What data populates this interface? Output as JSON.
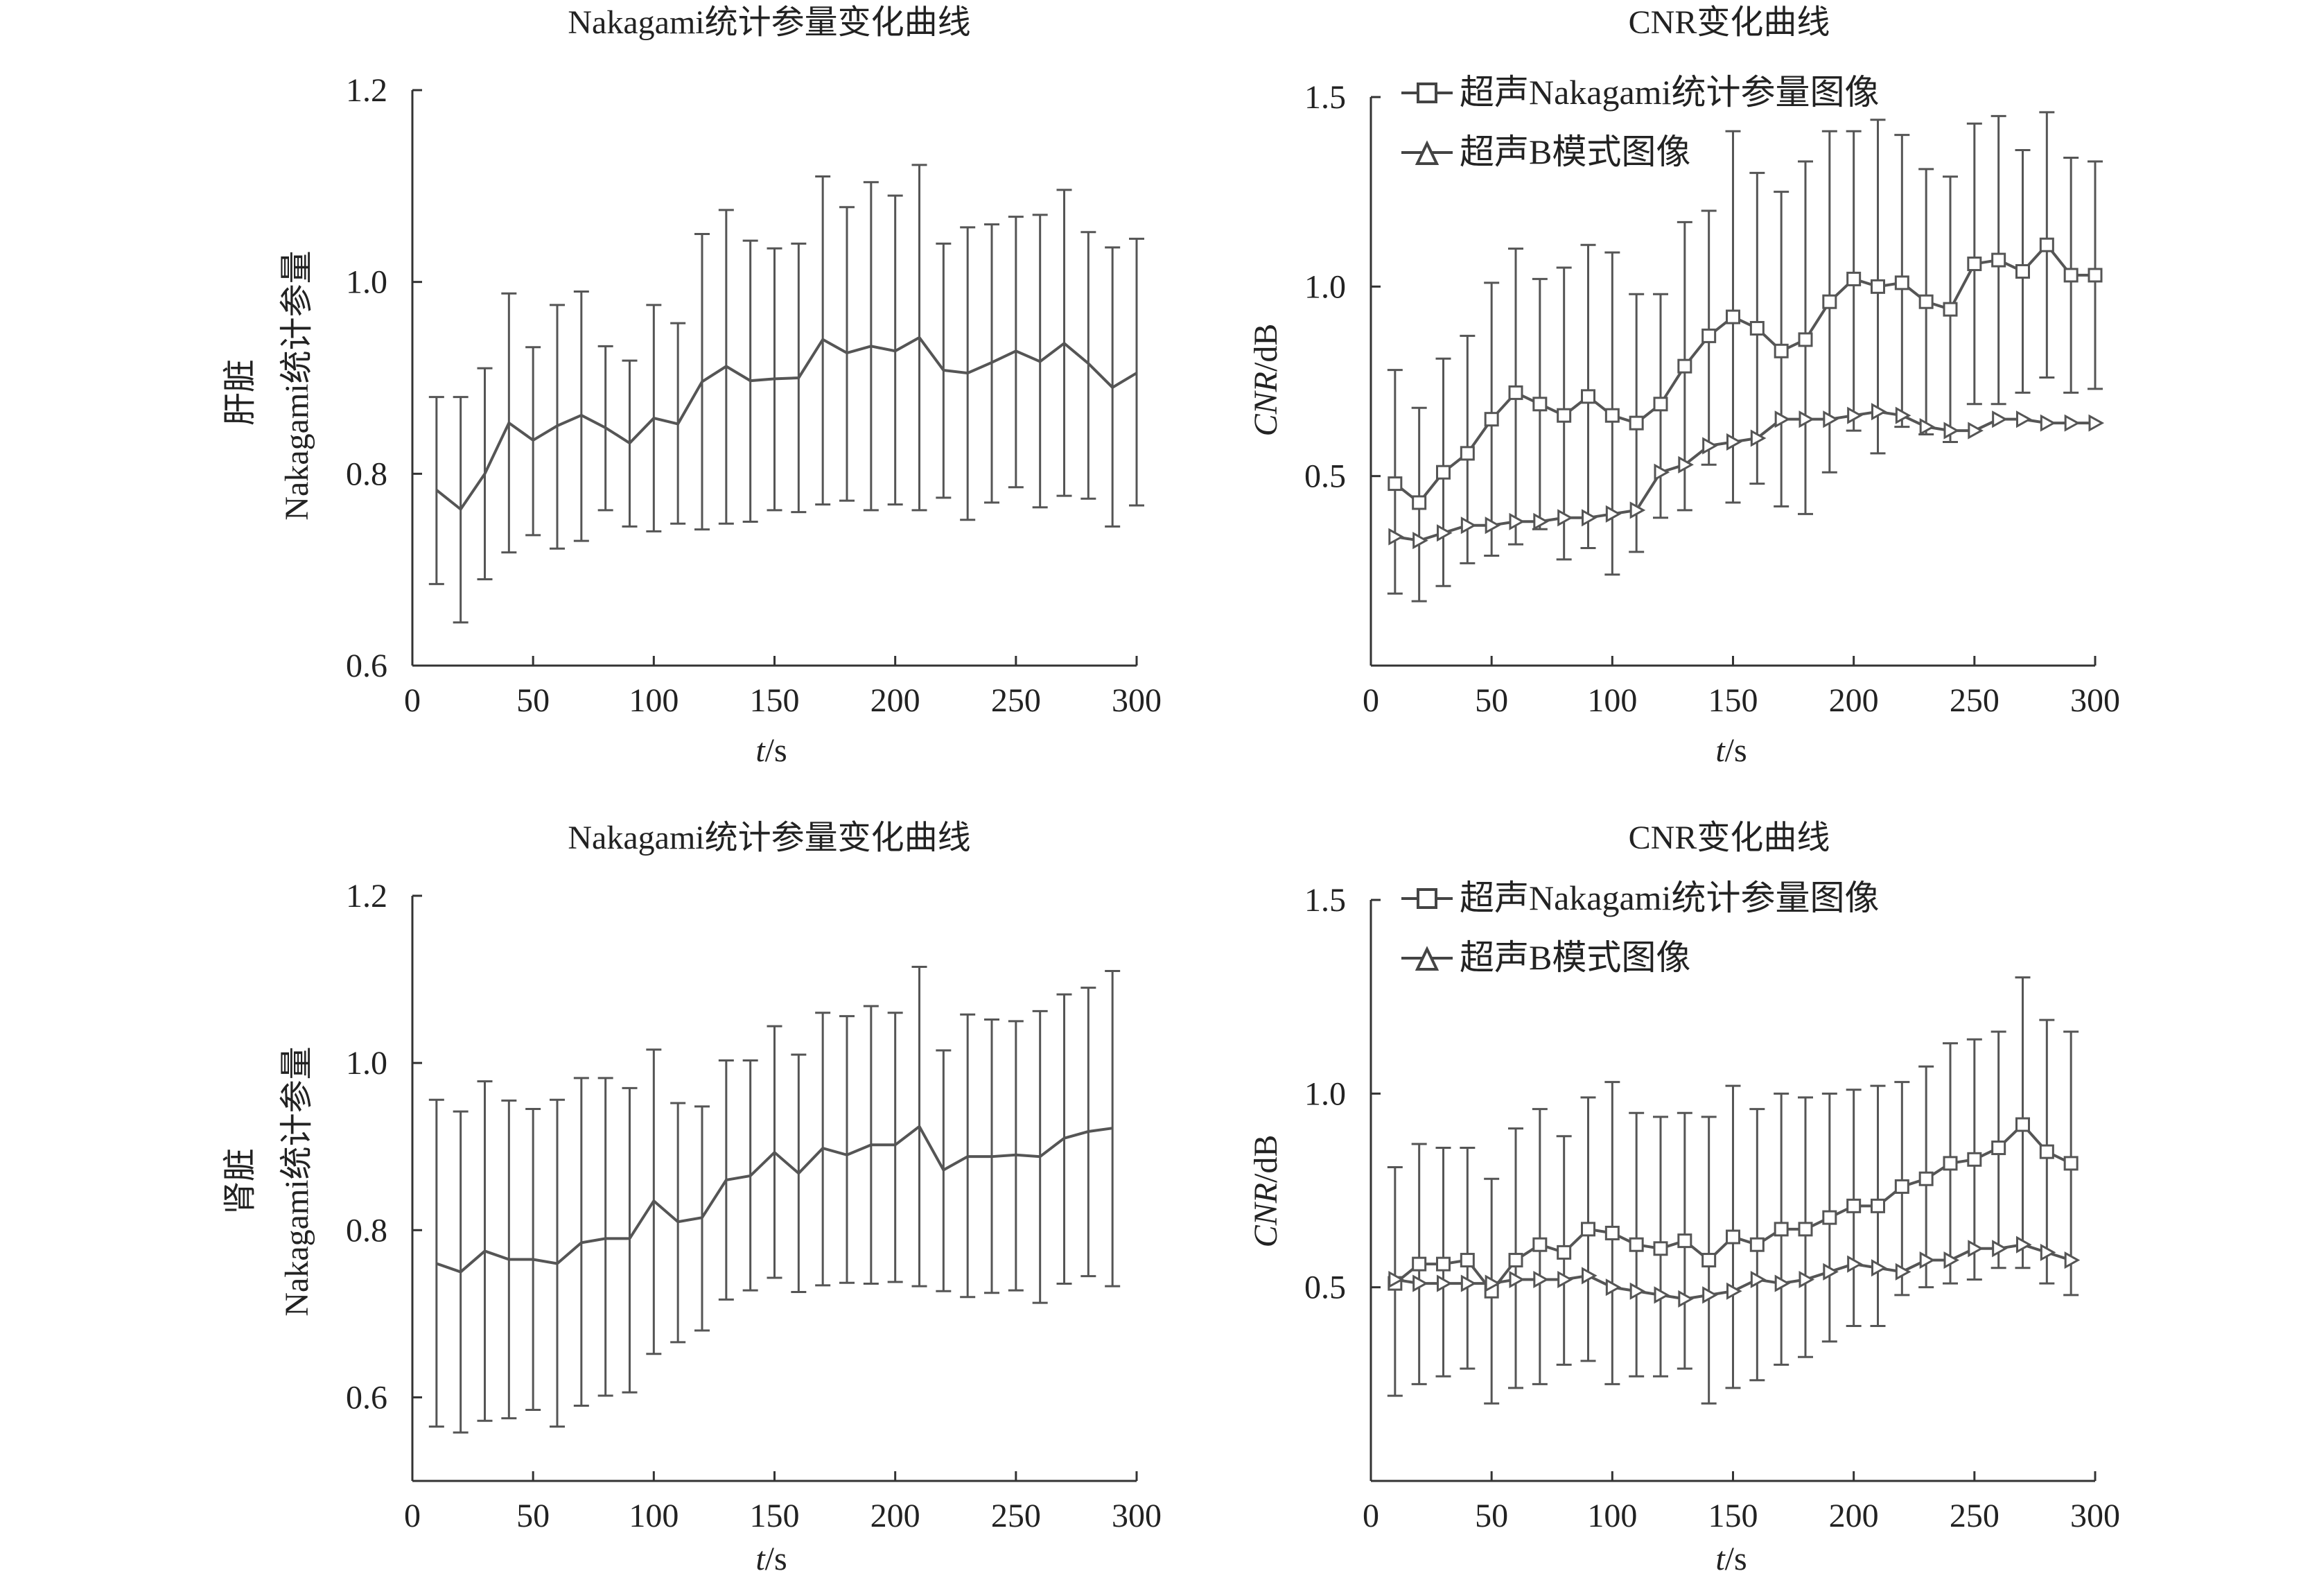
{
  "chart_data": [
    {
      "id": "liver-nakagami",
      "type": "line",
      "title": "Nakagami统计参量变化曲线",
      "ylabel_organ": "肝脏",
      "ylabel": "Nakagami统计参量",
      "xlabel_italic": "t",
      "xlabel_unit": "/s",
      "xlim": [
        0,
        300
      ],
      "ylim": [
        0.6,
        1.2
      ],
      "xticks": [
        0,
        50,
        100,
        150,
        200,
        250,
        300
      ],
      "yticks": [
        0.6,
        0.8,
        1.0,
        1.2
      ],
      "ytick_labels": [
        "0.6",
        "0.8",
        "1.0",
        "1.2"
      ],
      "x": [
        10,
        20,
        30,
        40,
        50,
        60,
        70,
        80,
        90,
        100,
        110,
        120,
        130,
        140,
        150,
        160,
        170,
        180,
        190,
        200,
        210,
        220,
        230,
        240,
        250,
        260,
        270,
        280,
        290,
        300
      ],
      "series": [
        {
          "values": [
            0.783,
            0.763,
            0.8,
            0.853,
            0.835,
            0.85,
            0.861,
            0.848,
            0.832,
            0.858,
            0.852,
            0.896,
            0.912,
            0.897,
            0.899,
            0.9,
            0.94,
            0.926,
            0.933,
            0.928,
            0.942,
            0.908,
            0.905,
            0.916,
            0.928,
            0.917,
            0.936,
            0.915,
            0.89,
            0.905
          ],
          "upper": [
            0.88,
            0.88,
            0.91,
            0.988,
            0.932,
            0.976,
            0.99,
            0.933,
            0.918,
            0.976,
            0.957,
            1.05,
            1.075,
            1.043,
            1.035,
            1.04,
            1.11,
            1.078,
            1.104,
            1.09,
            1.122,
            1.04,
            1.057,
            1.06,
            1.068,
            1.07,
            1.096,
            1.052,
            1.036,
            1.045
          ],
          "lower": [
            0.685,
            0.645,
            0.69,
            0.718,
            0.736,
            0.722,
            0.73,
            0.762,
            0.745,
            0.74,
            0.748,
            0.742,
            0.748,
            0.75,
            0.762,
            0.76,
            0.768,
            0.772,
            0.762,
            0.768,
            0.762,
            0.775,
            0.752,
            0.77,
            0.786,
            0.765,
            0.777,
            0.774,
            0.745,
            0.767
          ]
        }
      ]
    },
    {
      "id": "liver-cnr",
      "type": "line",
      "title": "CNR变化曲线",
      "ylabel_italic": "CNR",
      "ylabel_unit": "/dB",
      "xlabel_italic": "t",
      "xlabel_unit": "/s",
      "xlim": [
        0,
        300
      ],
      "ylim": [
        0,
        1.5
      ],
      "xticks": [
        0,
        50,
        100,
        150,
        200,
        250,
        300
      ],
      "yticks": [
        0.5,
        1.0,
        1.5
      ],
      "ytick_labels": [
        "0.5",
        "1.0",
        "1.5"
      ],
      "legend_position": "top-left",
      "x": [
        10,
        20,
        30,
        40,
        50,
        60,
        70,
        80,
        90,
        100,
        110,
        120,
        130,
        140,
        150,
        160,
        170,
        180,
        190,
        200,
        210,
        220,
        230,
        240,
        250,
        260,
        270,
        280,
        290,
        300
      ],
      "series": [
        {
          "name": "超声Nakagami统计参量图像",
          "marker": "square",
          "values": [
            0.48,
            0.43,
            0.51,
            0.56,
            0.65,
            0.72,
            0.69,
            0.66,
            0.71,
            0.66,
            0.64,
            0.69,
            0.79,
            0.87,
            0.92,
            0.89,
            0.83,
            0.86,
            0.96,
            1.02,
            1.0,
            1.01,
            0.96,
            0.94,
            1.06,
            1.07,
            1.04,
            1.11,
            1.03,
            1.03
          ],
          "upper": [
            0.78,
            0.68,
            0.81,
            0.87,
            1.01,
            1.1,
            1.02,
            1.05,
            1.11,
            1.09,
            0.98,
            0.98,
            1.17,
            1.2,
            1.41,
            1.3,
            1.25,
            1.33,
            1.41,
            1.41,
            1.44,
            1.4,
            1.31,
            1.29,
            1.43,
            1.45,
            1.36,
            1.46,
            1.34,
            1.33
          ],
          "lower": [
            0.19,
            0.17,
            0.21,
            0.27,
            0.29,
            0.32,
            0.36,
            0.28,
            0.31,
            0.24,
            0.3,
            0.39,
            0.41,
            0.53,
            0.43,
            0.48,
            0.42,
            0.4,
            0.51,
            0.62,
            0.56,
            0.63,
            0.61,
            0.59,
            0.69,
            0.69,
            0.72,
            0.76,
            0.72,
            0.73
          ]
        },
        {
          "name": "超声B模式图像",
          "marker": "triangle",
          "values": [
            0.34,
            0.33,
            0.35,
            0.37,
            0.37,
            0.38,
            0.38,
            0.39,
            0.39,
            0.4,
            0.41,
            0.51,
            0.53,
            0.58,
            0.59,
            0.6,
            0.65,
            0.65,
            0.65,
            0.66,
            0.67,
            0.66,
            0.63,
            0.62,
            0.62,
            0.65,
            0.65,
            0.64,
            0.64,
            0.64
          ]
        }
      ]
    },
    {
      "id": "kidney-nakagami",
      "type": "line",
      "title": "Nakagami统计参量变化曲线",
      "ylabel_organ": "肾脏",
      "ylabel": "Nakagami统计参量",
      "xlabel_italic": "t",
      "xlabel_unit": "/s",
      "xlim": [
        0,
        300
      ],
      "ylim": [
        0.5,
        1.2
      ],
      "xticks": [
        0,
        50,
        100,
        150,
        200,
        250,
        300
      ],
      "yticks": [
        0.6,
        0.8,
        1.0,
        1.2
      ],
      "ytick_labels": [
        "0.6",
        "0.8",
        "1.0",
        "1.2"
      ],
      "x": [
        10,
        20,
        30,
        40,
        50,
        60,
        70,
        80,
        90,
        100,
        110,
        120,
        130,
        140,
        150,
        160,
        170,
        180,
        190,
        200,
        210,
        220,
        230,
        240,
        250,
        260,
        270,
        280,
        290
      ],
      "series": [
        {
          "values": [
            0.76,
            0.75,
            0.775,
            0.765,
            0.765,
            0.76,
            0.785,
            0.79,
            0.79,
            0.835,
            0.81,
            0.815,
            0.86,
            0.865,
            0.893,
            0.868,
            0.898,
            0.89,
            0.902,
            0.902,
            0.924,
            0.872,
            0.888,
            0.888,
            0.89,
            0.888,
            0.91,
            0.918,
            0.922
          ],
          "upper": [
            0.956,
            0.942,
            0.978,
            0.955,
            0.945,
            0.956,
            0.982,
            0.982,
            0.97,
            1.016,
            0.952,
            0.948,
            1.003,
            1.003,
            1.044,
            1.01,
            1.06,
            1.056,
            1.068,
            1.06,
            1.115,
            1.015,
            1.058,
            1.052,
            1.05,
            1.062,
            1.082,
            1.09,
            1.11
          ],
          "lower": [
            0.565,
            0.558,
            0.572,
            0.575,
            0.585,
            0.565,
            0.59,
            0.602,
            0.606,
            0.652,
            0.666,
            0.68,
            0.717,
            0.728,
            0.743,
            0.726,
            0.734,
            0.737,
            0.736,
            0.738,
            0.733,
            0.727,
            0.72,
            0.725,
            0.728,
            0.713,
            0.736,
            0.745,
            0.733
          ]
        }
      ]
    },
    {
      "id": "kidney-cnr",
      "type": "line",
      "title": "CNR变化曲线",
      "ylabel_italic": "CNR",
      "ylabel_unit": "/dB",
      "xlabel_italic": "t",
      "xlabel_unit": "/s",
      "xlim": [
        0,
        300
      ],
      "ylim": [
        0,
        1.5
      ],
      "xticks": [
        0,
        50,
        100,
        150,
        200,
        250,
        300
      ],
      "yticks": [
        0.5,
        1.0,
        1.5
      ],
      "ytick_labels": [
        "0.5",
        "1.0",
        "1.5"
      ],
      "legend_position": "top-left",
      "x": [
        10,
        20,
        30,
        40,
        50,
        60,
        70,
        80,
        90,
        100,
        110,
        120,
        130,
        140,
        150,
        160,
        170,
        180,
        190,
        200,
        210,
        220,
        230,
        240,
        250,
        260,
        270,
        280,
        290
      ],
      "series": [
        {
          "name": "超声Nakagami统计参量图像",
          "marker": "square",
          "values": [
            0.51,
            0.56,
            0.56,
            0.57,
            0.49,
            0.57,
            0.61,
            0.59,
            0.65,
            0.64,
            0.61,
            0.6,
            0.62,
            0.57,
            0.63,
            0.61,
            0.65,
            0.65,
            0.68,
            0.71,
            0.71,
            0.76,
            0.78,
            0.82,
            0.83,
            0.86,
            0.92,
            0.85,
            0.82
          ],
          "upper": [
            0.81,
            0.87,
            0.86,
            0.86,
            0.78,
            0.91,
            0.96,
            0.89,
            0.99,
            1.03,
            0.95,
            0.94,
            0.95,
            0.94,
            1.02,
            0.96,
            1.0,
            0.99,
            1.0,
            1.01,
            1.02,
            1.03,
            1.07,
            1.13,
            1.14,
            1.16,
            1.3,
            1.19,
            1.16
          ],
          "lower": [
            0.22,
            0.25,
            0.27,
            0.29,
            0.2,
            0.24,
            0.25,
            0.3,
            0.31,
            0.25,
            0.27,
            0.27,
            0.29,
            0.2,
            0.24,
            0.26,
            0.3,
            0.32,
            0.36,
            0.4,
            0.4,
            0.48,
            0.5,
            0.51,
            0.52,
            0.55,
            0.55,
            0.51,
            0.48
          ]
        },
        {
          "name": "超声B模式图像",
          "marker": "triangle",
          "values": [
            0.52,
            0.51,
            0.51,
            0.51,
            0.51,
            0.52,
            0.52,
            0.52,
            0.53,
            0.5,
            0.49,
            0.48,
            0.47,
            0.48,
            0.49,
            0.52,
            0.51,
            0.52,
            0.54,
            0.56,
            0.55,
            0.54,
            0.57,
            0.57,
            0.6,
            0.6,
            0.61,
            0.59,
            0.57
          ]
        }
      ]
    }
  ]
}
